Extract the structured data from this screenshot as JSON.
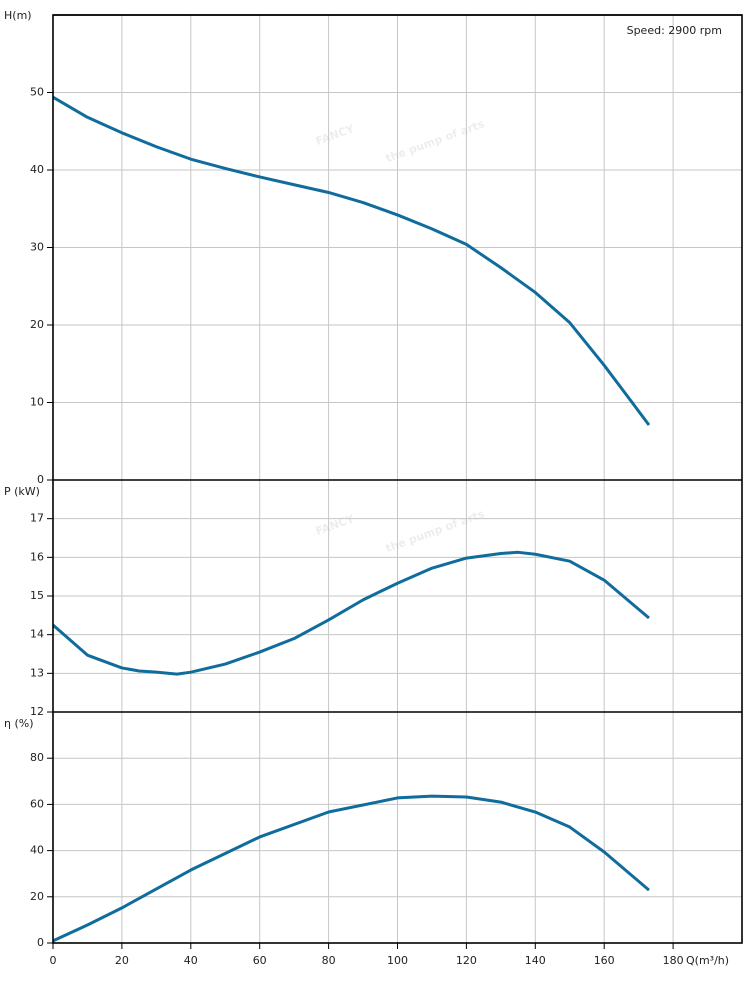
{
  "watermark": {
    "brand": "FANCY",
    "slogan": "the pump of arts"
  },
  "chart_data": [
    {
      "type": "line",
      "y_label": "H(m)",
      "annotation": "Speed: 2900 rpm",
      "x": [
        0,
        10,
        20,
        30,
        40,
        50,
        60,
        70,
        80,
        90,
        100,
        110,
        120,
        130,
        140,
        150,
        160,
        173
      ],
      "series": [
        {
          "name": "H",
          "color": "#106c9c",
          "values": [
            49.4,
            46.8,
            44.8,
            43.0,
            41.4,
            40.2,
            39.1,
            38.1,
            37.1,
            35.8,
            34.2,
            32.4,
            30.4,
            27.4,
            24.2,
            20.3,
            14.8,
            7.1
          ]
        }
      ],
      "ylim": [
        0,
        60
      ],
      "yticks": [
        0,
        10,
        20,
        30,
        40,
        50
      ],
      "grid": true
    },
    {
      "type": "line",
      "y_label": "P (kW)",
      "x": [
        0,
        10,
        20,
        25,
        30,
        36,
        40,
        50,
        60,
        70,
        80,
        90,
        100,
        110,
        120,
        130,
        135,
        140,
        150,
        160,
        173
      ],
      "series": [
        {
          "name": "P",
          "color": "#106c9c",
          "values": [
            14.25,
            13.47,
            13.14,
            13.06,
            13.03,
            12.98,
            13.03,
            13.24,
            13.55,
            13.9,
            14.38,
            14.9,
            15.33,
            15.72,
            15.98,
            16.1,
            16.13,
            16.08,
            15.9,
            15.41,
            14.43
          ]
        }
      ],
      "ylim": [
        12,
        18
      ],
      "yticks": [
        12,
        13,
        14,
        15,
        16,
        17
      ],
      "grid": true
    },
    {
      "type": "line",
      "y_label": "η (%)",
      "x_label": "Q(m³/h)",
      "x": [
        0,
        10,
        20,
        40,
        60,
        80,
        100,
        110,
        120,
        130,
        140,
        150,
        160,
        173
      ],
      "series": [
        {
          "name": "η",
          "color": "#106c9c",
          "values": [
            0.9,
            7.8,
            15.2,
            31.6,
            45.9,
            56.7,
            62.8,
            63.6,
            63.2,
            61.0,
            56.7,
            50.2,
            39.4,
            22.9
          ]
        }
      ],
      "ylim": [
        0,
        100
      ],
      "yticks": [
        0,
        20,
        40,
        60,
        80
      ],
      "grid": true,
      "xlim": [
        0,
        200
      ],
      "xticks": [
        0,
        20,
        40,
        60,
        80,
        100,
        120,
        140,
        160,
        180
      ]
    }
  ]
}
